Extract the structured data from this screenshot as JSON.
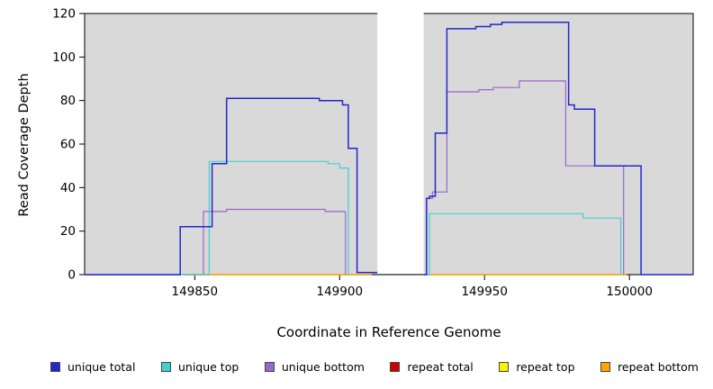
{
  "chart_data": {
    "type": "line",
    "title": "",
    "xlabel": "Coordinate in Reference Genome",
    "ylabel": "Read Coverage Depth",
    "xlim": [
      149812,
      150022
    ],
    "ylim": [
      0,
      120
    ],
    "xticks": [
      149850,
      149900,
      149950,
      150000
    ],
    "yticks": [
      0,
      20,
      40,
      60,
      80,
      100,
      120
    ],
    "plot_bg": "#d9d9d9",
    "axis_color": "#000000",
    "gap_band": {
      "x0": 149913,
      "x1": 149929,
      "color": "#ffffff"
    },
    "legend_position": "bottom",
    "series": [
      {
        "name": "repeat total",
        "color": "#cc0000",
        "width": 1.2,
        "segments": [
          [
            [
              149846,
              0
            ],
            [
              149911,
              0
            ]
          ],
          [
            [
              149930,
              0
            ],
            [
              149999,
              0
            ]
          ]
        ]
      },
      {
        "name": "repeat top",
        "color": "#f5f500",
        "width": 1.2,
        "segments": [
          [
            [
              149846,
              0
            ],
            [
              149911,
              0
            ]
          ],
          [
            [
              149930,
              0
            ],
            [
              149999,
              0
            ]
          ]
        ]
      },
      {
        "name": "repeat bottom",
        "color": "#ffa500",
        "width": 1.2,
        "segments": [
          [
            [
              149846,
              0
            ],
            [
              149911,
              0
            ]
          ],
          [
            [
              149930,
              0
            ],
            [
              149999,
              0
            ]
          ]
        ]
      },
      {
        "name": "unique bottom",
        "color": "#9966cc",
        "width": 1.2,
        "segments": [
          [
            [
              149812,
              0
            ],
            [
              149853,
              29
            ],
            [
              149861,
              30
            ],
            [
              149895,
              29
            ],
            [
              149902,
              0
            ]
          ],
          [
            [
              149929,
              0
            ],
            [
              149930,
              35
            ],
            [
              149932,
              38
            ],
            [
              149937,
              84
            ],
            [
              149948,
              85
            ],
            [
              149953,
              86
            ],
            [
              149962,
              89
            ],
            [
              149978,
              50
            ],
            [
              149998,
              0
            ]
          ]
        ]
      },
      {
        "name": "unique top",
        "color": "#44cfcf",
        "width": 1.2,
        "segments": [
          [
            [
              149812,
              0
            ],
            [
              149855,
              52
            ],
            [
              149896,
              51
            ],
            [
              149900,
              49
            ],
            [
              149903,
              0
            ]
          ],
          [
            [
              149929,
              0
            ],
            [
              149931,
              28
            ],
            [
              149984,
              26
            ],
            [
              149997,
              0
            ]
          ]
        ]
      },
      {
        "name": "unique total",
        "color": "#2525cd",
        "width": 1.5,
        "segments": [
          [
            [
              149812,
              0
            ],
            [
              149845,
              22
            ],
            [
              149856,
              51
            ],
            [
              149861,
              81
            ],
            [
              149893,
              80
            ],
            [
              149901,
              78
            ],
            [
              149903,
              58
            ],
            [
              149906,
              1
            ],
            [
              149913,
              1
            ]
          ],
          [
            [
              149929,
              0
            ],
            [
              149930,
              35
            ],
            [
              149931,
              36
            ],
            [
              149933,
              65
            ],
            [
              149937,
              113
            ],
            [
              149947,
              114
            ],
            [
              149952,
              115
            ],
            [
              149956,
              116
            ],
            [
              149979,
              78
            ],
            [
              149981,
              76
            ],
            [
              149988,
              50
            ],
            [
              150004,
              0
            ],
            [
              150022,
              0
            ]
          ]
        ]
      }
    ],
    "legend": [
      {
        "label": "unique total",
        "color": "#2525cd"
      },
      {
        "label": "unique top",
        "color": "#44cfcf"
      },
      {
        "label": "unique bottom",
        "color": "#9966cc"
      },
      {
        "label": "repeat total",
        "color": "#cc0000"
      },
      {
        "label": "repeat top",
        "color": "#f5f500"
      },
      {
        "label": "repeat bottom",
        "color": "#ffa500"
      }
    ]
  }
}
